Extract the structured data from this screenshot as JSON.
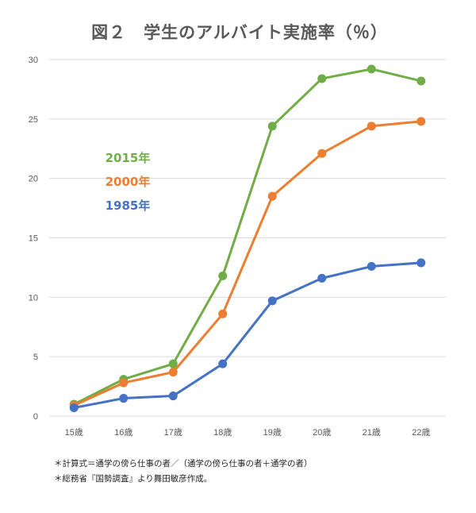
{
  "chart_data": {
    "type": "line",
    "title": "図２　学生のアルバイト実施率（％）",
    "xlabel": "",
    "ylabel": "",
    "categories": [
      "15歳",
      "16歳",
      "17歳",
      "18歳",
      "19歳",
      "20歳",
      "21歳",
      "22歳"
    ],
    "yticks": [
      "0",
      "5",
      "10",
      "15",
      "20",
      "25",
      "30"
    ],
    "ylim": [
      0,
      30
    ],
    "grid": true,
    "legend_placement": "left-middle",
    "series": [
      {
        "name": "2015年",
        "color": "#70ad47",
        "values": [
          1.0,
          3.1,
          4.4,
          11.8,
          24.4,
          28.4,
          29.2,
          28.2
        ]
      },
      {
        "name": "2000年",
        "color": "#ed7d31",
        "values": [
          0.9,
          2.8,
          3.7,
          8.6,
          18.5,
          22.1,
          24.4,
          24.8
        ]
      },
      {
        "name": "1985年",
        "color": "#4472c4",
        "values": [
          0.7,
          1.5,
          1.7,
          4.4,
          9.7,
          11.6,
          12.6,
          12.9
        ]
      }
    ]
  },
  "notes": [
    "＊計算式＝通学の傍ら仕事の者／（通学の傍ら仕事の者＋通学の者）",
    "＊総務省『国勢調査』より舞田敏彦作成。"
  ]
}
